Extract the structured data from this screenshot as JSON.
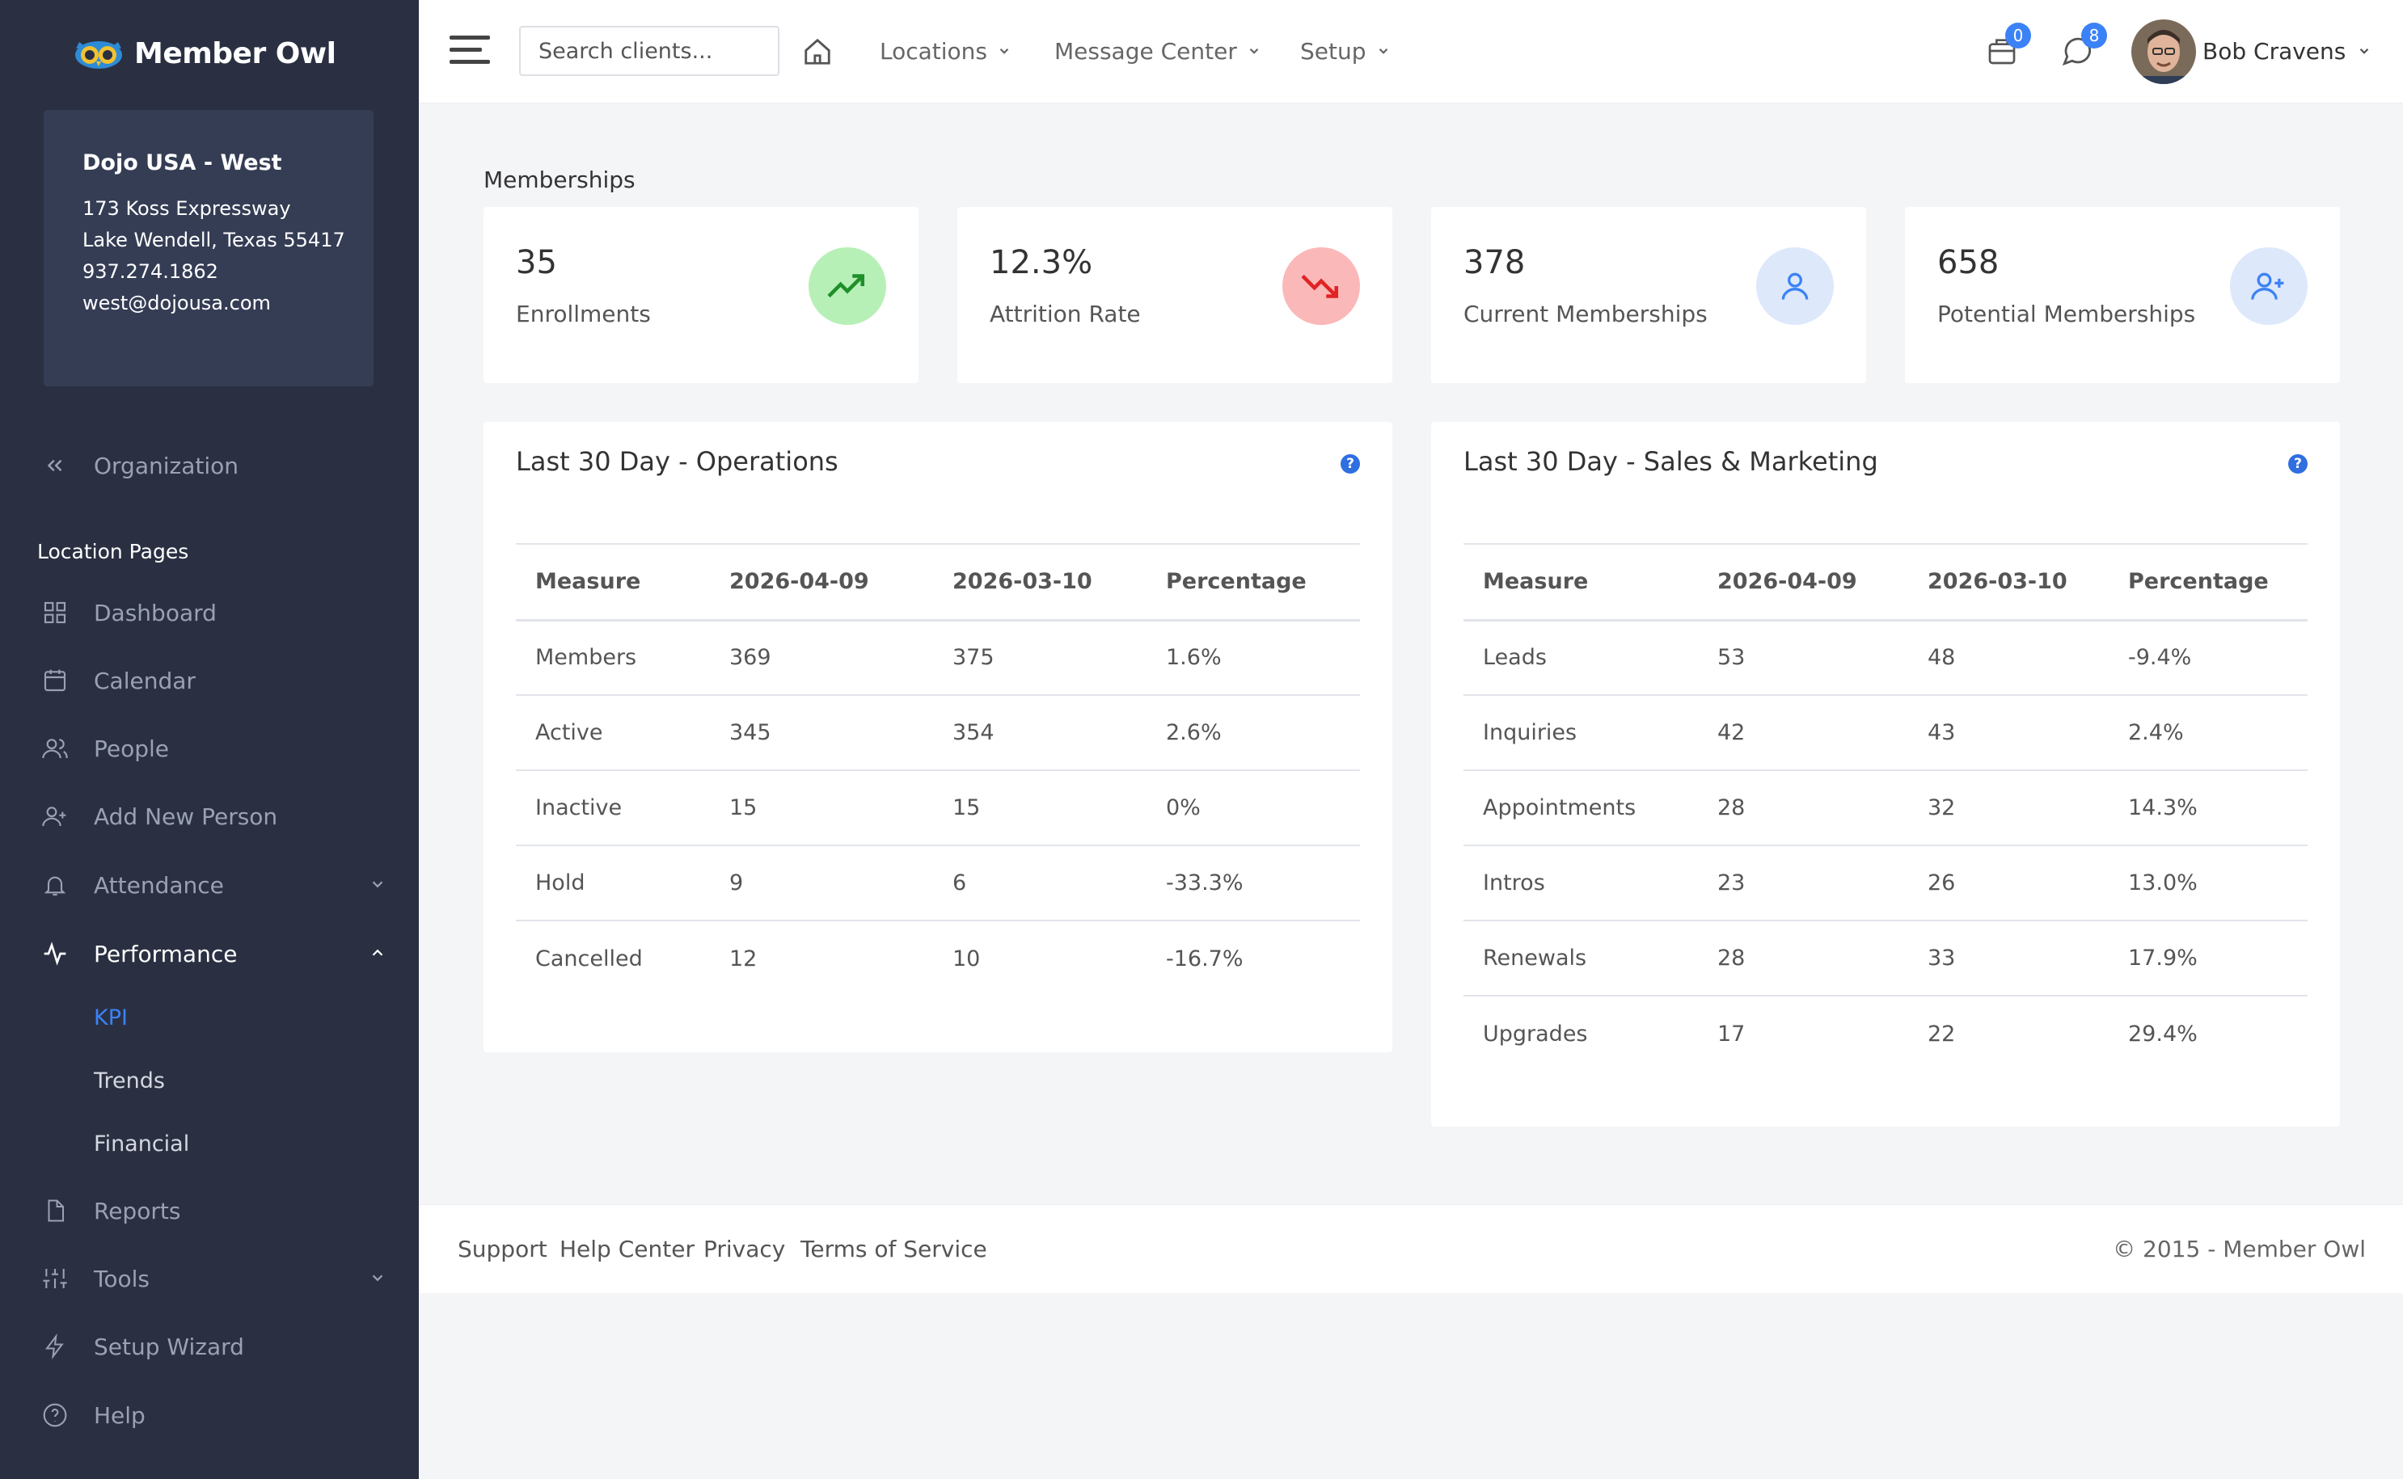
{
  "brand": {
    "name": "Member Owl"
  },
  "location": {
    "name": "Dojo USA - West",
    "address1": "173 Koss Expressway",
    "address2": "Lake Wendell, Texas 55417",
    "phone": "937.274.1862",
    "email": "west@dojousa.com"
  },
  "sidebar": {
    "org_label": "Organization",
    "section_title": "Location Pages",
    "items": {
      "dashboard": "Dashboard",
      "calendar": "Calendar",
      "people": "People",
      "add_person": "Add New Person",
      "attendance": "Attendance",
      "performance": "Performance",
      "reports": "Reports",
      "tools": "Tools",
      "setup_wizard": "Setup Wizard",
      "help": "Help"
    },
    "performance_sub": {
      "kpi": "KPI",
      "trends": "Trends",
      "financial": "Financial"
    }
  },
  "topbar": {
    "search_placeholder": "Search clients...",
    "nav": {
      "locations": "Locations",
      "message_center": "Message Center",
      "setup": "Setup"
    },
    "cart_count": "0",
    "messages_count": "8",
    "user_name": "Bob Cravens"
  },
  "memberships": {
    "label": "Memberships",
    "stats": [
      {
        "value": "35",
        "label": "Enrollments",
        "icon": "trending-up-icon",
        "color": "#b7f0b7"
      },
      {
        "value": "12.3%",
        "label": "Attrition Rate",
        "icon": "trending-down-icon",
        "color": "#fbb8b8"
      },
      {
        "value": "378",
        "label": "Current Memberships",
        "icon": "user-icon",
        "color": "#dde8fb"
      },
      {
        "value": "658",
        "label": "Potential Memberships",
        "icon": "user-plus-icon",
        "color": "#dde8fb"
      }
    ]
  },
  "operations": {
    "title": "Last 30 Day - Operations",
    "headers": [
      "Measure",
      "2026-04-09",
      "2026-03-10",
      "Percentage"
    ],
    "rows": [
      [
        "Members",
        "369",
        "375",
        "1.6%"
      ],
      [
        "Active",
        "345",
        "354",
        "2.6%"
      ],
      [
        "Inactive",
        "15",
        "15",
        "0%"
      ],
      [
        "Hold",
        "9",
        "6",
        "-33.3%"
      ],
      [
        "Cancelled",
        "12",
        "10",
        "-16.7%"
      ]
    ]
  },
  "sales": {
    "title": "Last 30 Day - Sales & Marketing",
    "headers": [
      "Measure",
      "2026-04-09",
      "2026-03-10",
      "Percentage"
    ],
    "rows": [
      [
        "Leads",
        "53",
        "48",
        "-9.4%"
      ],
      [
        "Inquiries",
        "42",
        "43",
        "2.4%"
      ],
      [
        "Appointments",
        "28",
        "32",
        "14.3%"
      ],
      [
        "Intros",
        "23",
        "26",
        "13.0%"
      ],
      [
        "Renewals",
        "28",
        "33",
        "17.9%"
      ],
      [
        "Upgrades",
        "17",
        "22",
        "29.4%"
      ]
    ]
  },
  "footer": {
    "links": {
      "support": "Support",
      "help_center": "Help Center",
      "privacy": "Privacy",
      "terms": "Terms of Service"
    },
    "copyright": "© 2015 - Member Owl"
  },
  "colors": {
    "accent": "#3b82f6",
    "sidebar": "#2a3042"
  }
}
